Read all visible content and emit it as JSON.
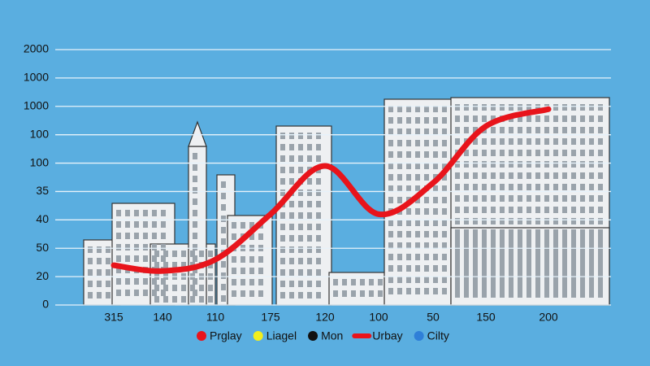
{
  "chart_data": {
    "type": "line",
    "categories": [
      "315",
      "140",
      "110",
      "175",
      "120",
      "100",
      "50",
      "150",
      "200"
    ],
    "series": [
      {
        "name": "Urbay",
        "color": "#e8141b",
        "values": [
          1.4,
          1.2,
          1.6,
          3.2,
          4.9,
          3.2,
          4.3,
          6.3,
          6.9
        ]
      }
    ],
    "ylim": [
      0,
      9
    ],
    "yticks": [
      0,
      {
        "value": 1,
        "label": "20"
      },
      {
        "value": 2,
        "label": "50"
      },
      {
        "value": 3,
        "label": "40"
      },
      {
        "value": 4,
        "label": "35"
      },
      {
        "value": 5,
        "label": "100"
      },
      {
        "value": 6,
        "label": "100"
      },
      {
        "value": 7,
        "label": "1000"
      },
      {
        "value": 8,
        "label": "1000"
      },
      {
        "value": 9,
        "label": "2000"
      }
    ],
    "grid": true,
    "legend": [
      {
        "name": "Prglay",
        "color": "#e8141b",
        "marker": "dot"
      },
      {
        "name": "Liagel",
        "color": "#f2ee1c",
        "marker": "dot"
      },
      {
        "name": "Mon",
        "color": "#111111",
        "marker": "dot"
      },
      {
        "name": "Urbay",
        "color": "#e8141b",
        "marker": "line"
      },
      {
        "name": "Cilty",
        "color": "#2f7fd8",
        "marker": "dot"
      }
    ]
  }
}
